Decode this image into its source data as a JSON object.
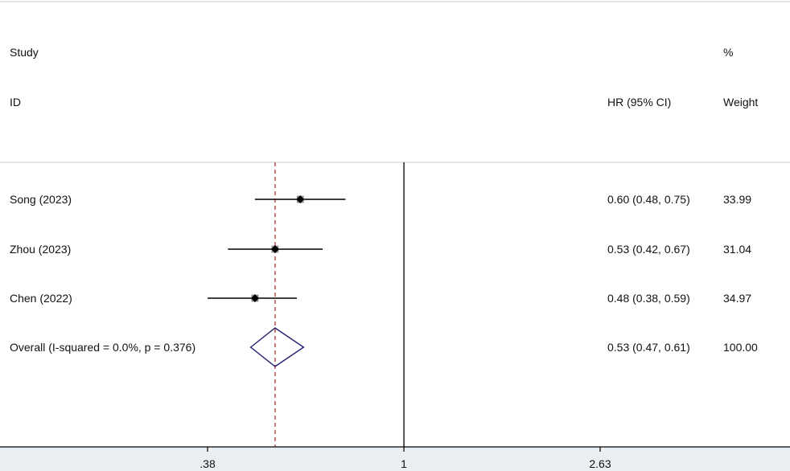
{
  "header": {
    "study_label": "Study",
    "id_label": "ID",
    "hr_label": "HR (95% CI)",
    "pct_label": "%",
    "weight_label": "Weight"
  },
  "chart_data": {
    "type": "forest",
    "scale": "log",
    "x_ticks": [
      {
        "value": 0.38,
        "label": ".38"
      },
      {
        "value": 1,
        "label": "1"
      },
      {
        "value": 2.63,
        "label": "2.63"
      }
    ],
    "xlim": [
      0.38,
      2.63
    ],
    "null_line": 1,
    "overall_line": 0.53,
    "studies": [
      {
        "label": "Song (2023)",
        "hr": 0.6,
        "lo": 0.48,
        "hi": 0.75,
        "ci_text": "0.60 (0.48, 0.75)",
        "weight": "33.99"
      },
      {
        "label": "Zhou (2023)",
        "hr": 0.53,
        "lo": 0.42,
        "hi": 0.67,
        "ci_text": "0.53 (0.42, 0.67)",
        "weight": "31.04"
      },
      {
        "label": "Chen (2022)",
        "hr": 0.48,
        "lo": 0.38,
        "hi": 0.59,
        "ci_text": "0.48 (0.38, 0.59)",
        "weight": "34.97"
      }
    ],
    "overall": {
      "label": "Overall  (I-squared = 0.0%, p = 0.376)",
      "hr": 0.53,
      "lo": 0.47,
      "hi": 0.61,
      "ci_text": "0.53 (0.47, 0.61)",
      "weight": "100.00"
    },
    "colors": {
      "ci_line": "#000000",
      "point": "#000000",
      "diamond": "#1f1f6e",
      "overall_line": "#b22222",
      "axis": "#000000"
    }
  }
}
